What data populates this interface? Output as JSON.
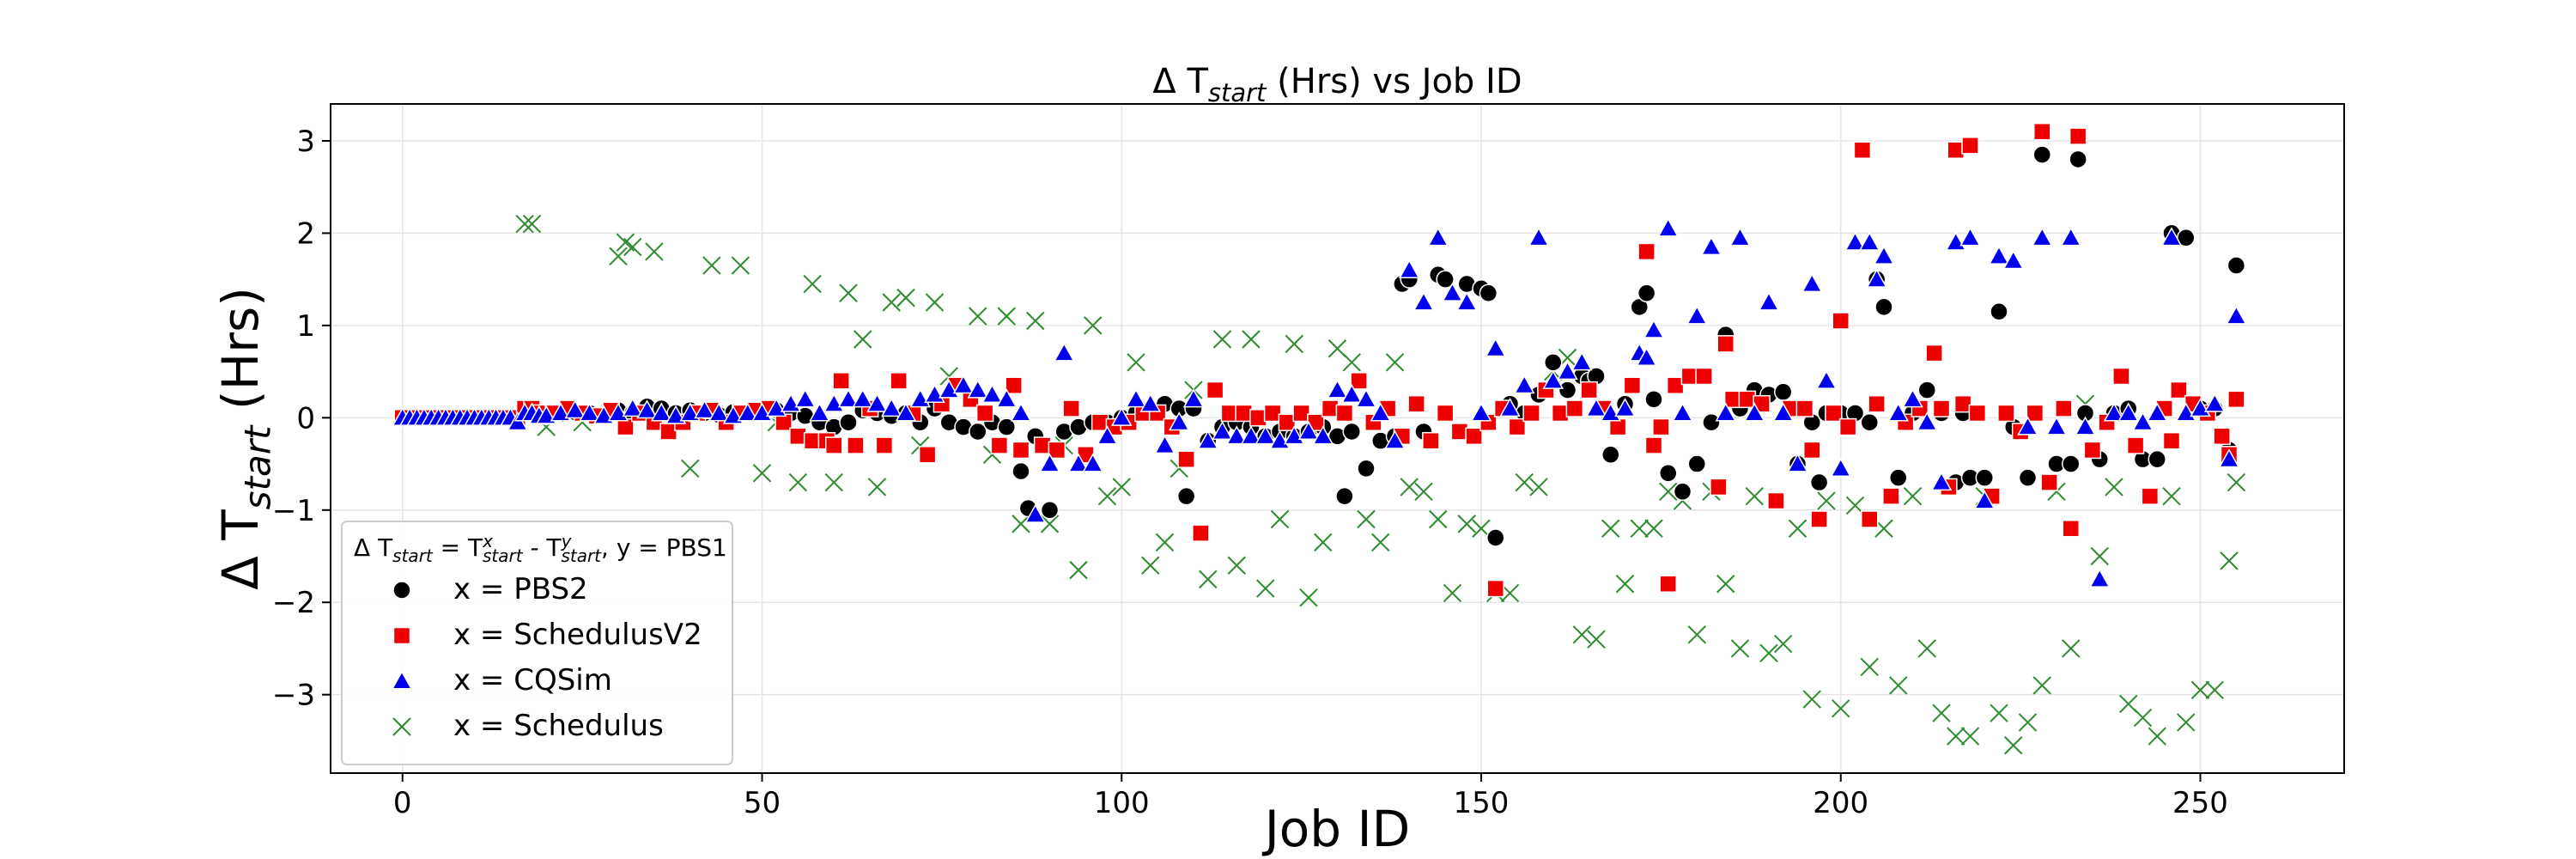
{
  "chart_data": {
    "type": "scatter",
    "title": "Δ T_start (Hrs) vs Job ID",
    "xlabel": "Job ID",
    "ylabel": "Δ T_start (Hrs)",
    "xlim": [
      -10,
      270
    ],
    "ylim": [
      -3.85,
      3.4
    ],
    "xticks": [
      0,
      50,
      100,
      150,
      200,
      250
    ],
    "yticks": [
      -3,
      -2,
      -1,
      0,
      1,
      2,
      3
    ],
    "grid": true,
    "legend": {
      "placement": "lower-left",
      "title": "Δ T_start = T^x_start - T^y_start, y = PBS1"
    },
    "series": [
      {
        "name": "x = PBS2",
        "marker": "circle",
        "color": "#000000",
        "x": [
          0,
          1,
          2,
          3,
          4,
          5,
          6,
          7,
          8,
          9,
          10,
          11,
          12,
          13,
          14,
          15,
          16,
          17,
          18,
          19,
          20,
          22,
          24,
          26,
          28,
          30,
          32,
          34,
          36,
          38,
          40,
          42,
          44,
          46,
          48,
          50,
          52,
          54,
          56,
          58,
          60,
          62,
          64,
          66,
          68,
          70,
          72,
          74,
          76,
          78,
          80,
          82,
          84,
          86,
          87,
          88,
          90,
          92,
          94,
          96,
          98,
          100,
          102,
          104,
          106,
          108,
          109,
          110,
          112,
          114,
          116,
          118,
          120,
          122,
          124,
          126,
          128,
          130,
          131,
          132,
          134,
          136,
          138,
          139,
          140,
          142,
          144,
          145,
          148,
          150,
          151,
          152,
          154,
          156,
          158,
          160,
          162,
          164,
          165,
          166,
          168,
          170,
          172,
          173,
          174,
          176,
          178,
          180,
          182,
          184,
          186,
          188,
          190,
          192,
          194,
          196,
          197,
          198,
          200,
          202,
          204,
          205,
          206,
          208,
          210,
          212,
          214,
          216,
          217,
          218,
          220,
          222,
          224,
          226,
          228,
          230,
          232,
          233,
          234,
          236,
          238,
          240,
          242,
          244,
          246,
          248,
          250,
          252,
          254,
          255
        ],
        "y": [
          0,
          0,
          0,
          0,
          0,
          0,
          0,
          0,
          0,
          0,
          0,
          0,
          0,
          0,
          0,
          0,
          0,
          0.05,
          0.05,
          0.03,
          0.02,
          0.04,
          0.06,
          0.05,
          0.03,
          0.08,
          0.05,
          0.12,
          0.1,
          0.05,
          0.08,
          0.05,
          0.03,
          0.06,
          0.05,
          0.05,
          0.08,
          0.05,
          0.02,
          -0.05,
          -0.1,
          -0.05,
          0.08,
          0.05,
          0.02,
          0.05,
          -0.05,
          0.1,
          -0.05,
          -0.1,
          -0.15,
          -0.05,
          -0.1,
          -0.58,
          -0.98,
          -0.2,
          -1.0,
          -0.15,
          -0.1,
          -0.05,
          -0.05,
          0,
          0.05,
          0.1,
          0.15,
          0.1,
          -0.85,
          0.1,
          -0.25,
          -0.1,
          -0.05,
          -0.1,
          -0.2,
          -0.15,
          -0.2,
          -0.15,
          -0.1,
          -0.2,
          -0.85,
          -0.15,
          -0.55,
          -0.25,
          -0.2,
          1.45,
          1.5,
          -0.15,
          1.55,
          1.5,
          1.45,
          1.4,
          1.35,
          -1.3,
          0.15,
          0.05,
          0.25,
          0.6,
          0.3,
          0.45,
          0.4,
          0.45,
          -0.4,
          0.15,
          1.2,
          1.35,
          0.2,
          -0.6,
          -0.8,
          -0.5,
          -0.05,
          0.9,
          0.1,
          0.3,
          0.25,
          0.28,
          -0.5,
          -0.05,
          -0.7,
          0.05,
          0.05,
          0.05,
          -0.05,
          1.5,
          1.2,
          -0.65,
          0.05,
          0.3,
          0.05,
          -0.7,
          0.05,
          -0.65,
          -0.65,
          1.15,
          -0.1,
          -0.65,
          2.85,
          -0.5,
          -0.5,
          2.8,
          0.05,
          -0.45,
          0.05,
          0.1,
          -0.45,
          -0.45,
          2.0,
          1.95,
          0.1,
          0.1,
          -0.35,
          1.65
        ]
      },
      {
        "name": "x = SchedulusV2",
        "marker": "square",
        "color": "#ee0000",
        "x": [
          0,
          1,
          2,
          3,
          4,
          5,
          6,
          7,
          8,
          9,
          10,
          11,
          12,
          13,
          14,
          15,
          16,
          17,
          18,
          19,
          21,
          23,
          25,
          27,
          29,
          31,
          33,
          35,
          37,
          39,
          41,
          43,
          45,
          47,
          49,
          51,
          53,
          55,
          57,
          59,
          60,
          61,
          63,
          65,
          67,
          69,
          71,
          73,
          75,
          77,
          79,
          81,
          83,
          85,
          86,
          89,
          91,
          93,
          95,
          97,
          99,
          101,
          103,
          105,
          107,
          109,
          111,
          113,
          115,
          117,
          119,
          121,
          123,
          125,
          127,
          129,
          131,
          133,
          135,
          137,
          139,
          141,
          143,
          145,
          147,
          149,
          151,
          152,
          153,
          155,
          157,
          159,
          161,
          163,
          165,
          167,
          169,
          171,
          173,
          174,
          175,
          176,
          177,
          179,
          181,
          183,
          184,
          185,
          187,
          189,
          191,
          193,
          195,
          196,
          197,
          199,
          200,
          201,
          203,
          204,
          205,
          207,
          209,
          211,
          213,
          214,
          215,
          216,
          217,
          218,
          219,
          221,
          223,
          225,
          227,
          228,
          229,
          231,
          232,
          233,
          235,
          237,
          239,
          241,
          243,
          245,
          246,
          247,
          249,
          251,
          253,
          254,
          255
        ],
        "y": [
          0,
          0,
          0,
          0,
          0,
          0,
          0,
          0,
          0,
          0,
          0,
          0,
          0,
          0,
          0,
          0,
          0,
          0.1,
          0.1,
          0.05,
          0.05,
          0.1,
          0.05,
          0.02,
          0.08,
          -0.1,
          0.05,
          -0.05,
          -0.15,
          -0.05,
          0.05,
          0.08,
          -0.05,
          0.05,
          0.08,
          0.1,
          -0.05,
          -0.2,
          -0.25,
          -0.25,
          -0.3,
          0.4,
          -0.3,
          0.1,
          -0.3,
          0.4,
          0.05,
          -0.4,
          0.15,
          0.35,
          0.2,
          0.05,
          -0.3,
          0.35,
          -0.35,
          -0.3,
          -0.35,
          0.1,
          -0.4,
          -0.05,
          -0.1,
          -0.05,
          0.05,
          0.05,
          -0.1,
          -0.45,
          -1.25,
          0.3,
          0.05,
          0.05,
          0,
          0.05,
          -0.05,
          0.05,
          -0.05,
          0.1,
          0.05,
          0.4,
          -0.05,
          0.1,
          -0.2,
          0.15,
          -0.25,
          0.05,
          -0.15,
          -0.2,
          -0.05,
          -1.85,
          0.1,
          -0.1,
          0.05,
          0.3,
          0.05,
          0.1,
          0.3,
          0.1,
          -0.1,
          0.35,
          1.8,
          -0.3,
          -0.1,
          -1.8,
          0.35,
          0.45,
          0.45,
          -0.75,
          0.8,
          0.2,
          0.2,
          0.15,
          -0.9,
          0.1,
          0.1,
          -0.35,
          -1.1,
          0.05,
          1.05,
          -0.1,
          2.9,
          -1.1,
          0.15,
          -0.85,
          -0.05,
          0.1,
          0.7,
          0.1,
          -0.75,
          2.9,
          0.15,
          2.95,
          0.05,
          -0.85,
          0.05,
          -0.15,
          0.05,
          3.1,
          -0.7,
          0.1,
          -1.2,
          3.05,
          -0.35,
          -0.05,
          0.45,
          -0.3,
          -0.85,
          0.1,
          -0.25,
          0.3,
          0.15,
          0.05,
          -0.2,
          -0.4,
          0.2
        ]
      },
      {
        "name": "x = CQSim",
        "marker": "triangle",
        "color": "#0000ee",
        "x": [
          0,
          1,
          2,
          3,
          4,
          5,
          6,
          7,
          8,
          9,
          10,
          11,
          12,
          13,
          14,
          15,
          16,
          17,
          18,
          19,
          20,
          22,
          24,
          26,
          28,
          30,
          32,
          34,
          36,
          38,
          40,
          42,
          44,
          46,
          48,
          50,
          52,
          54,
          56,
          58,
          60,
          62,
          64,
          66,
          68,
          70,
          72,
          74,
          76,
          78,
          80,
          82,
          84,
          86,
          88,
          90,
          92,
          94,
          96,
          98,
          100,
          102,
          104,
          106,
          108,
          110,
          112,
          114,
          116,
          118,
          120,
          122,
          124,
          126,
          128,
          130,
          132,
          134,
          136,
          138,
          140,
          142,
          144,
          146,
          148,
          150,
          152,
          154,
          156,
          158,
          160,
          162,
          164,
          166,
          168,
          170,
          172,
          173,
          174,
          176,
          178,
          180,
          182,
          184,
          186,
          188,
          190,
          192,
          194,
          196,
          198,
          200,
          202,
          204,
          205,
          206,
          208,
          210,
          212,
          214,
          216,
          218,
          220,
          222,
          224,
          226,
          228,
          230,
          232,
          234,
          236,
          238,
          240,
          242,
          244,
          246,
          248,
          250,
          252,
          254,
          255
        ],
        "y": [
          0,
          0,
          0,
          0,
          0,
          0,
          0,
          0,
          0,
          0,
          0,
          0,
          0,
          0,
          0,
          0,
          -0.05,
          0.05,
          0.05,
          0.02,
          0.02,
          0.05,
          0.08,
          0.05,
          0.02,
          0.05,
          0.1,
          0.08,
          0.05,
          0.02,
          0.05,
          0.08,
          0.05,
          0.02,
          0.05,
          0.05,
          0.1,
          0.15,
          0.2,
          0.05,
          0.15,
          0.2,
          0.2,
          0.15,
          0.1,
          0.05,
          0.2,
          0.25,
          0.3,
          0.35,
          0.3,
          0.25,
          0.2,
          0.05,
          -1.05,
          -0.5,
          0.7,
          -0.5,
          -0.5,
          -0.2,
          0,
          0.2,
          0.15,
          -0.3,
          -0.05,
          0.2,
          -0.25,
          -0.15,
          -0.2,
          -0.2,
          -0.2,
          -0.25,
          -0.2,
          -0.15,
          -0.2,
          0.3,
          0.25,
          0.2,
          0.05,
          -0.25,
          1.6,
          1.25,
          1.95,
          1.35,
          1.25,
          0.05,
          0.75,
          0.1,
          0.35,
          1.95,
          0.4,
          0.5,
          0.6,
          0.1,
          0.05,
          0.1,
          0.7,
          0.65,
          0.95,
          2.05,
          0.05,
          1.1,
          1.85,
          0.05,
          1.95,
          0.05,
          1.25,
          0.05,
          -0.5,
          1.45,
          0.4,
          -0.55,
          1.9,
          1.9,
          1.5,
          1.75,
          0.05,
          0.2,
          -0.05,
          -0.7,
          1.9,
          1.95,
          -0.9,
          1.75,
          1.7,
          -0.1,
          1.95,
          -0.1,
          1.95,
          -0.1,
          -1.75,
          0.05,
          0.05,
          -0.05,
          0.05,
          1.95,
          0.05,
          0.1,
          0.15,
          -0.45,
          1.1
        ]
      },
      {
        "name": "x = Schedulus",
        "marker": "x",
        "color": "#2e8b2e",
        "x": [
          17,
          18,
          20,
          25,
          30,
          31,
          32,
          35,
          40,
          43,
          47,
          50,
          52,
          55,
          57,
          60,
          62,
          64,
          66,
          68,
          70,
          72,
          74,
          76,
          80,
          82,
          84,
          86,
          88,
          90,
          92,
          94,
          96,
          98,
          100,
          102,
          104,
          106,
          108,
          110,
          112,
          114,
          116,
          118,
          120,
          122,
          124,
          126,
          128,
          130,
          132,
          134,
          136,
          138,
          140,
          142,
          144,
          146,
          148,
          150,
          152,
          154,
          156,
          158,
          160,
          162,
          164,
          166,
          168,
          170,
          172,
          174,
          176,
          178,
          180,
          182,
          184,
          186,
          188,
          190,
          192,
          194,
          196,
          198,
          200,
          202,
          204,
          206,
          208,
          210,
          212,
          214,
          216,
          218,
          220,
          222,
          224,
          226,
          228,
          230,
          232,
          234,
          236,
          238,
          240,
          242,
          244,
          246,
          248,
          250,
          252,
          254,
          255
        ],
        "y": [
          2.1,
          2.1,
          -0.1,
          -0.05,
          1.75,
          1.9,
          1.85,
          1.8,
          -0.55,
          1.65,
          1.65,
          -0.6,
          -0.05,
          -0.7,
          1.45,
          -0.7,
          1.35,
          0.85,
          -0.75,
          1.25,
          1.3,
          -0.3,
          1.25,
          0.45,
          1.1,
          -0.4,
          1.1,
          -1.15,
          1.05,
          -1.15,
          -0.3,
          -1.65,
          1.0,
          -0.85,
          -0.75,
          0.6,
          -1.6,
          -1.35,
          -0.55,
          0.3,
          -1.75,
          0.85,
          -1.6,
          0.85,
          -1.85,
          -1.1,
          0.8,
          -1.95,
          -1.35,
          0.75,
          0.6,
          -1.1,
          -1.35,
          0.6,
          -0.75,
          -0.8,
          -1.1,
          -1.9,
          -1.15,
          -1.2,
          -1.9,
          -1.9,
          -0.7,
          -0.75,
          0.5,
          0.65,
          -2.35,
          -2.4,
          -1.2,
          -1.8,
          -1.2,
          -1.2,
          -0.8,
          -0.9,
          -2.35,
          -0.8,
          -1.8,
          -2.5,
          -0.85,
          -2.55,
          -2.45,
          -1.2,
          -3.05,
          -0.9,
          -3.15,
          -0.95,
          -2.7,
          -1.2,
          -2.9,
          -0.85,
          -2.5,
          -3.2,
          -3.45,
          -3.45,
          -0.85,
          -3.2,
          -3.55,
          -3.3,
          -2.9,
          -0.8,
          -2.5,
          0.15,
          -1.5,
          -0.75,
          -3.1,
          -3.25,
          -3.45,
          -0.85,
          -3.3,
          -2.95,
          -2.95,
          -1.55,
          -0.7
        ]
      }
    ]
  }
}
